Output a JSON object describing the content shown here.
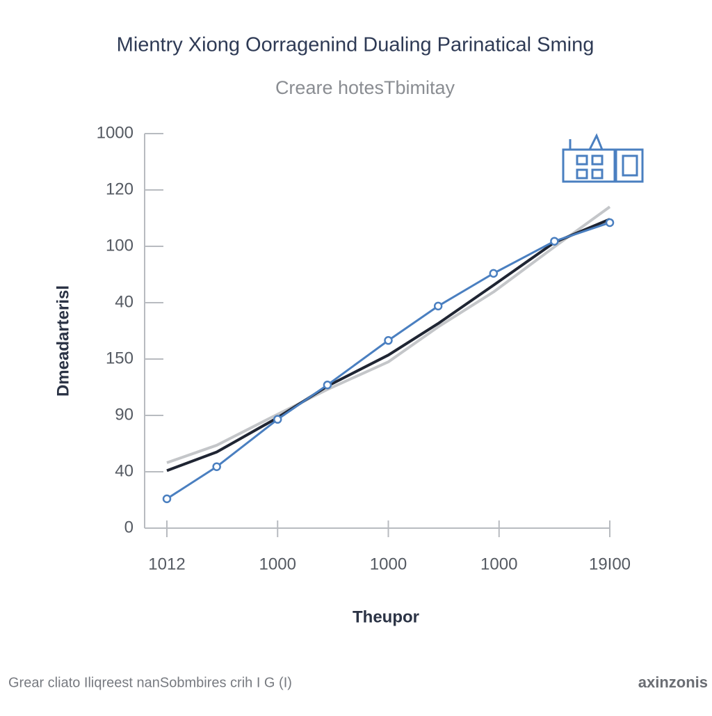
{
  "chart_data": {
    "type": "line",
    "title": "Mientry Xiong Oorragenind Dualing Parinatical Sming",
    "subtitle": "Creare hotesTbimitay",
    "y_label": "Dmeadarterisl",
    "x_label": "Theupor",
    "footnote": "Grear cliato Iliqreest nanSobmbires crih I G (I)",
    "brand": "axinzonis",
    "x": [
      0,
      0.9,
      2,
      2.9,
      4,
      4.9,
      5.9,
      7,
      8
    ],
    "xlim": [
      0,
      8
    ],
    "xticks": [
      {
        "value": 0,
        "label": "1012"
      },
      {
        "value": 2,
        "label": "1000"
      },
      {
        "value": 4,
        "label": "1000"
      },
      {
        "value": 6,
        "label": "1000"
      },
      {
        "value": 8,
        "label": "19I00"
      }
    ],
    "ylim": [
      0,
      7
    ],
    "yticks": [
      0,
      {
        "value": 1,
        "label": "40"
      },
      {
        "value": 2,
        "label": "90"
      },
      {
        "value": 3,
        "label": "150"
      },
      {
        "value": 4,
        "label": "40"
      },
      {
        "value": 5,
        "label": "100"
      },
      {
        "value": 6,
        "label": "120"
      },
      {
        "value": 7,
        "label": "1000"
      }
    ],
    "series": [
      {
        "color": "#c4c6c9",
        "values": [
          1.16,
          1.47,
          2.02,
          2.46,
          2.95,
          3.57,
          4.19,
          4.99,
          5.7
        ],
        "markers": false
      },
      {
        "color": "#1f2533",
        "values": [
          1.02,
          1.35,
          1.96,
          2.52,
          3.07,
          3.63,
          4.31,
          5.07,
          5.48
        ],
        "markers": false
      },
      {
        "color": "#4a7fc0",
        "values": [
          0.52,
          1.09,
          1.93,
          2.54,
          3.33,
          3.94,
          4.52,
          5.09,
          5.42
        ],
        "markers": true
      }
    ]
  }
}
